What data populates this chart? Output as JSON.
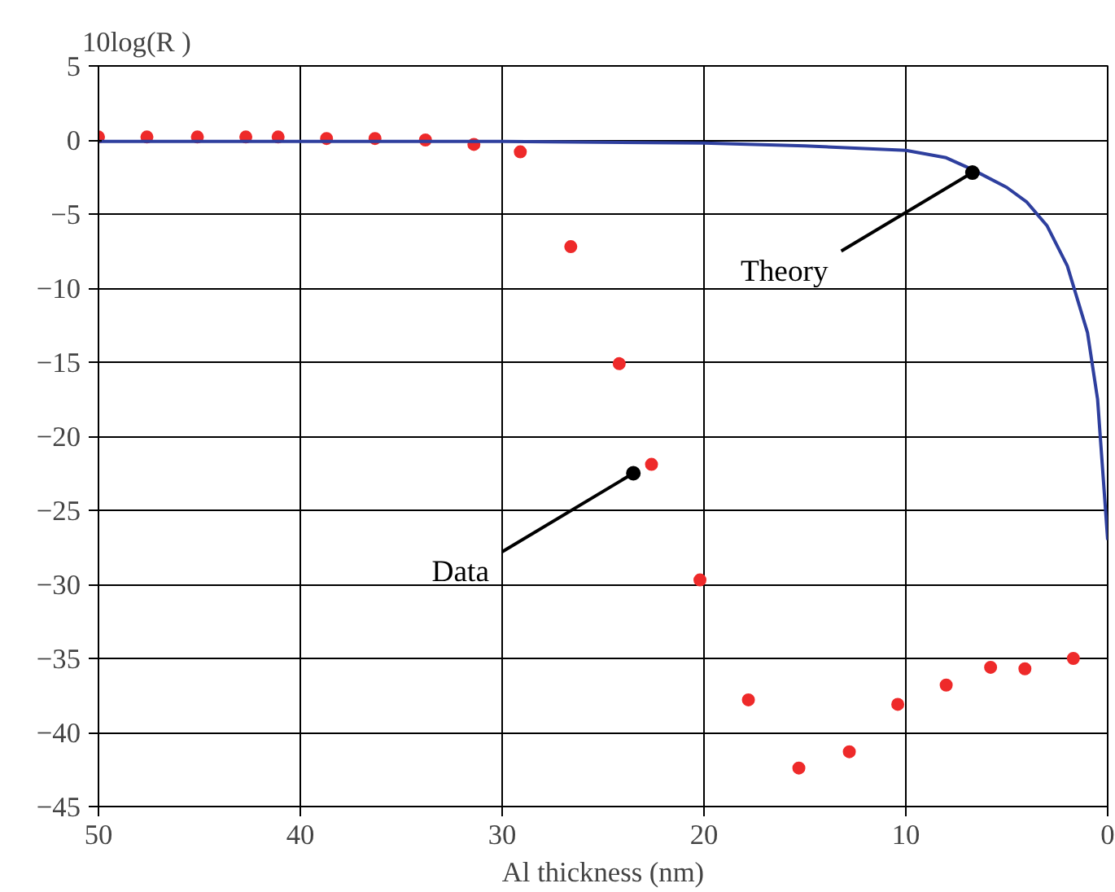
{
  "chart_data": {
    "type": "scatter",
    "ylabel": "10log(R )",
    "xlabel": "Al thickness (nm)",
    "xlim": [
      50,
      0
    ],
    "ylim": [
      -45,
      5
    ],
    "xticks": [
      50,
      40,
      30,
      20,
      10,
      0
    ],
    "yticks": [
      5,
      0,
      -5,
      -10,
      -15,
      -20,
      -25,
      -30,
      -35,
      -40,
      -45
    ],
    "grid": true,
    "series": [
      {
        "marker": "circle",
        "color": "#ee2a2a",
        "x": [
          50,
          47.6,
          45.1,
          42.7,
          41.1,
          38.7,
          36.3,
          33.8,
          31.4,
          29.1,
          26.6,
          24.2,
          22.6,
          20.2,
          17.8,
          15.3,
          12.8,
          10.4,
          8.0,
          5.8,
          4.1,
          1.7
        ],
        "values": [
          0.2,
          0.2,
          0.2,
          0.2,
          0.2,
          0.1,
          0.1,
          0,
          -0.3,
          -0.8,
          -7.2,
          -15.1,
          -21.9,
          -29.7,
          -37.8,
          -42.4,
          -41.3,
          -38.1,
          -36.8,
          -35.6,
          -35.7,
          -35.0
        ]
      },
      {
        "type": "line",
        "marker": "none",
        "color": "#2e3f9e",
        "x": [
          50,
          40,
          30,
          20,
          15,
          10,
          8,
          6.7,
          5,
          4,
          3,
          2,
          1,
          0.5,
          0
        ],
        "values": [
          -0.1,
          -0.1,
          -0.1,
          -0.2,
          -0.4,
          -0.7,
          -1.2,
          -2.0,
          -3.2,
          -4.2,
          -5.8,
          -8.5,
          -13,
          -17.5,
          -27
        ]
      }
    ],
    "annotations": [
      {
        "text": "Theory",
        "x": 6.7,
        "y": -2.2
      },
      {
        "text": "Data",
        "x": 23.5,
        "y": -22.5
      }
    ]
  }
}
